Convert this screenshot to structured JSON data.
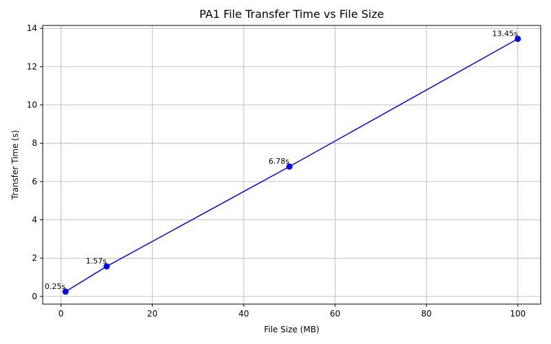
{
  "chart_data": {
    "type": "line",
    "title": "PA1 File Transfer Time vs File Size",
    "xlabel": "File Size (MB)",
    "ylabel": "Transfer Time (s)",
    "xlim": [
      -4,
      105
    ],
    "ylim": [
      -0.4,
      14.15
    ],
    "xticks": [
      0,
      20,
      40,
      60,
      80,
      100
    ],
    "yticks": [
      0,
      2,
      4,
      6,
      8,
      10,
      12,
      14
    ],
    "grid": true,
    "series": [
      {
        "color": "#0000ff",
        "marker": "circle",
        "x": [
          1,
          10,
          50,
          100
        ],
        "y": [
          0.25,
          1.57,
          6.78,
          13.45
        ],
        "labels": [
          "0.25s",
          "1.57s",
          "6.78s",
          "13.45s"
        ]
      }
    ]
  }
}
